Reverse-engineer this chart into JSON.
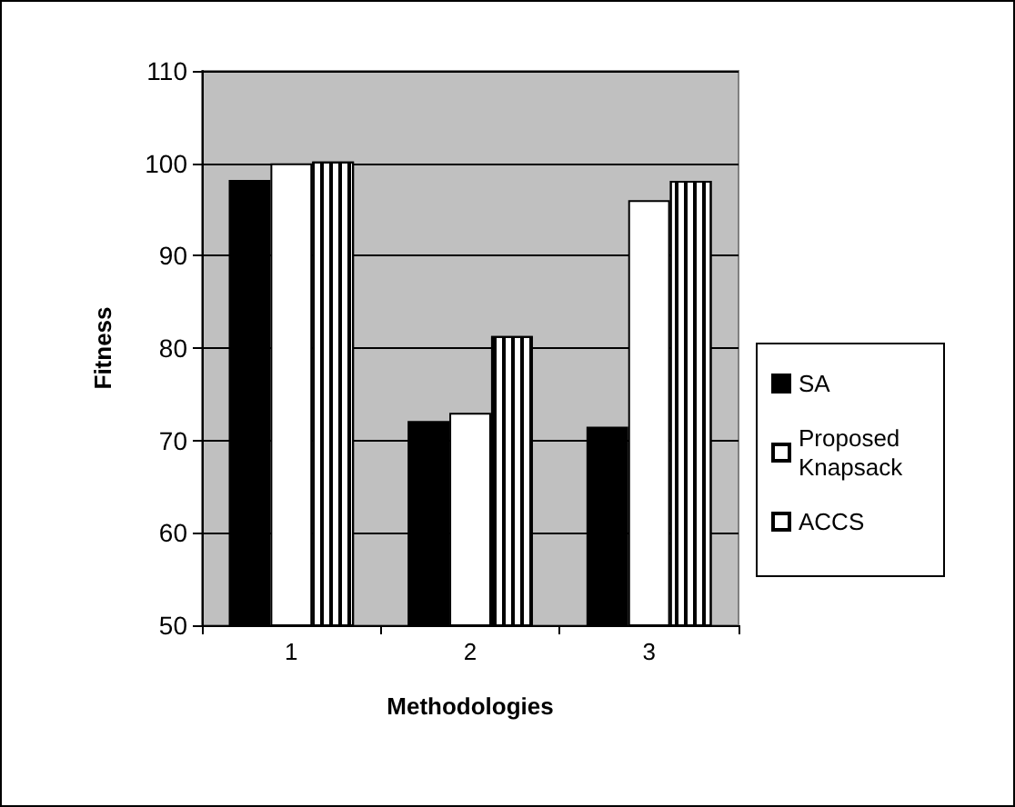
{
  "chart_data": {
    "type": "bar",
    "xlabel": "Methodologies",
    "ylabel": "Fitness",
    "categories": [
      "1",
      "2",
      "3"
    ],
    "series": [
      {
        "name": "SA",
        "color": "#000000",
        "values": [
          98.2,
          72.1,
          71.5
        ]
      },
      {
        "name": "Proposed Knapsack",
        "color": "#ffffff",
        "values": [
          100,
          73.0,
          96.0
        ]
      },
      {
        "name": "ACCS",
        "color": "#ffffff",
        "values": [
          100.2,
          81.3,
          98.1
        ]
      }
    ],
    "ylim": [
      50,
      110
    ],
    "yticks": [
      50,
      60,
      70,
      80,
      90,
      100,
      110
    ],
    "grid": "y",
    "legend": "right"
  }
}
